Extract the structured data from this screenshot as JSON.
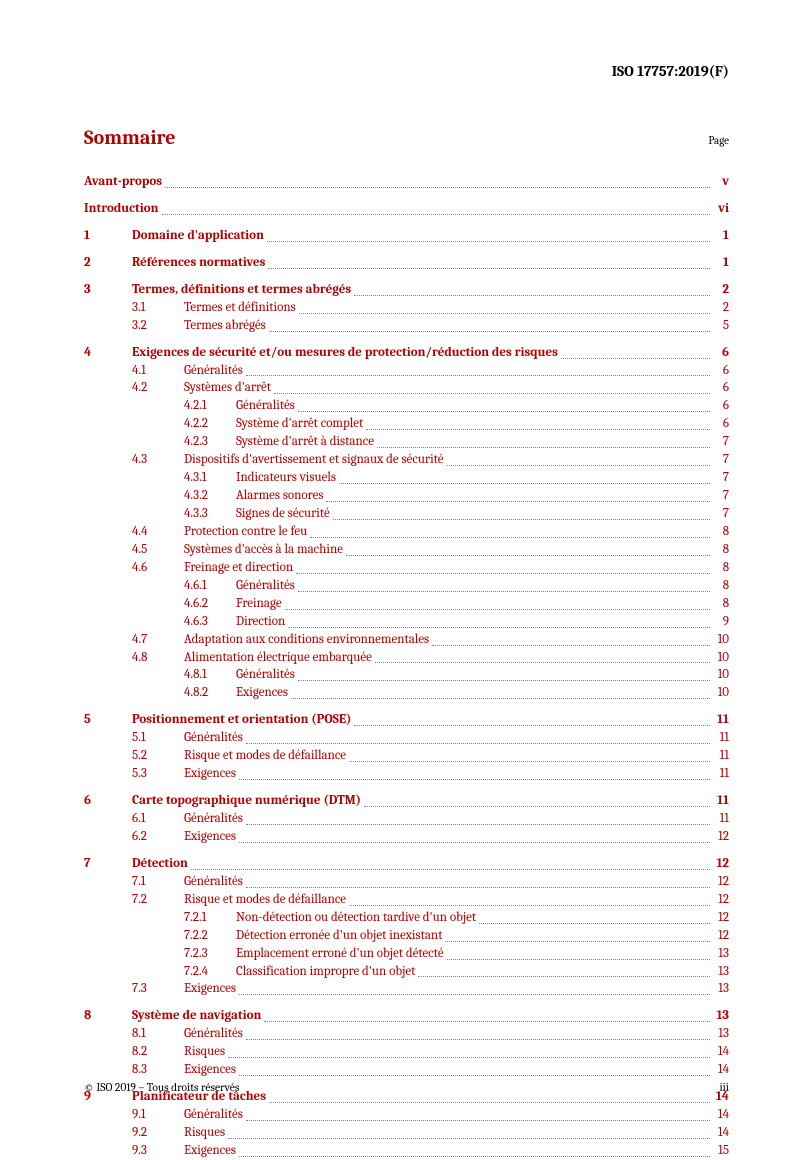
{
  "doc_id": "ISO 17757:2019(F)",
  "heading": "Sommaire",
  "page_label": "Page",
  "footer_left": "© ISO 2019 – Tous droits réservés",
  "footer_right": "iii",
  "colors": {
    "accent": "#b30000"
  },
  "toc": [
    {
      "level": 0,
      "num": "",
      "title": "Avant-propos",
      "page": "v",
      "link": true,
      "bold": true,
      "gap": false
    },
    {
      "level": 0,
      "num": "",
      "title": "Introduction",
      "page": "vi",
      "link": true,
      "bold": true,
      "gap": true
    },
    {
      "level": 1,
      "num": "1",
      "title": "Domaine d'application",
      "page": "1",
      "link": true,
      "bold": true,
      "gap": true
    },
    {
      "level": 1,
      "num": "2",
      "title": "Références normatives",
      "page": "1",
      "link": true,
      "bold": true,
      "gap": true
    },
    {
      "level": 1,
      "num": "3",
      "title": "Termes, définitions et termes abrégés",
      "page": "2",
      "link": true,
      "bold": true,
      "gap": true
    },
    {
      "level": 2,
      "num": "3.1",
      "title": "Termes et définitions",
      "page": "2",
      "link": true,
      "bold": false,
      "gap": false
    },
    {
      "level": 2,
      "num": "3.2",
      "title": "Termes abrégés",
      "page": "5",
      "link": true,
      "bold": false,
      "gap": false
    },
    {
      "level": 1,
      "num": "4",
      "title": "Exigences de sécurité et/ou mesures de protection/réduction des risques",
      "page": "6",
      "link": true,
      "bold": true,
      "gap": true
    },
    {
      "level": 2,
      "num": "4.1",
      "title": "Généralités",
      "page": "6",
      "link": true,
      "bold": false,
      "gap": false
    },
    {
      "level": 2,
      "num": "4.2",
      "title": "Systèmes d'arrêt",
      "page": "6",
      "link": true,
      "bold": false,
      "gap": false
    },
    {
      "level": 3,
      "num": "4.2.1",
      "title": "Généralités",
      "page": "6",
      "link": true,
      "bold": false,
      "gap": false
    },
    {
      "level": 3,
      "num": "4.2.2",
      "title": "Système d'arrêt complet",
      "page": "6",
      "link": true,
      "bold": false,
      "gap": false
    },
    {
      "level": 3,
      "num": "4.2.3",
      "title": "Système d'arrêt à distance",
      "page": "7",
      "link": true,
      "bold": false,
      "gap": false
    },
    {
      "level": 2,
      "num": "4.3",
      "title": "Dispositifs d'avertissement et signaux de sécurité",
      "page": "7",
      "link": true,
      "bold": false,
      "gap": false
    },
    {
      "level": 3,
      "num": "4.3.1",
      "title": "Indicateurs visuels",
      "page": "7",
      "link": true,
      "bold": false,
      "gap": false
    },
    {
      "level": 3,
      "num": "4.3.2",
      "title": "Alarmes sonores",
      "page": "7",
      "link": true,
      "bold": false,
      "gap": false
    },
    {
      "level": 3,
      "num": "4.3.3",
      "title": "Signes de sécurité",
      "page": "7",
      "link": true,
      "bold": false,
      "gap": false
    },
    {
      "level": 2,
      "num": "4.4",
      "title": "Protection contre le feu",
      "page": "8",
      "link": true,
      "bold": false,
      "gap": false
    },
    {
      "level": 2,
      "num": "4.5",
      "title": "Systèmes d'accès à la machine",
      "page": "8",
      "link": true,
      "bold": false,
      "gap": false
    },
    {
      "level": 2,
      "num": "4.6",
      "title": "Freinage et direction",
      "page": "8",
      "link": true,
      "bold": false,
      "gap": false
    },
    {
      "level": 3,
      "num": "4.6.1",
      "title": "Généralités",
      "page": "8",
      "link": true,
      "bold": false,
      "gap": false
    },
    {
      "level": 3,
      "num": "4.6.2",
      "title": "Freinage",
      "page": "8",
      "link": true,
      "bold": false,
      "gap": false
    },
    {
      "level": 3,
      "num": "4.6.3",
      "title": "Direction",
      "page": "9",
      "link": true,
      "bold": false,
      "gap": false
    },
    {
      "level": 2,
      "num": "4.7",
      "title": "Adaptation aux conditions environnementales",
      "page": "10",
      "link": true,
      "bold": false,
      "gap": false
    },
    {
      "level": 2,
      "num": "4.8",
      "title": "Alimentation électrique embarquée",
      "page": "10",
      "link": true,
      "bold": false,
      "gap": false
    },
    {
      "level": 3,
      "num": "4.8.1",
      "title": "Généralités",
      "page": "10",
      "link": true,
      "bold": false,
      "gap": false
    },
    {
      "level": 3,
      "num": "4.8.2",
      "title": "Exigences",
      "page": "10",
      "link": true,
      "bold": false,
      "gap": false
    },
    {
      "level": 1,
      "num": "5",
      "title": "Positionnement et orientation (POSE)",
      "page": "11",
      "link": true,
      "bold": true,
      "gap": true
    },
    {
      "level": 2,
      "num": "5.1",
      "title": "Généralités",
      "page": "11",
      "link": true,
      "bold": false,
      "gap": false
    },
    {
      "level": 2,
      "num": "5.2",
      "title": "Risque et modes de défaillance",
      "page": "11",
      "link": true,
      "bold": false,
      "gap": false
    },
    {
      "level": 2,
      "num": "5.3",
      "title": "Exigences",
      "page": "11",
      "link": true,
      "bold": false,
      "gap": false
    },
    {
      "level": 1,
      "num": "6",
      "title": "Carte topographique numérique (DTM)",
      "page": "11",
      "link": true,
      "bold": true,
      "gap": true
    },
    {
      "level": 2,
      "num": "6.1",
      "title": "Généralités",
      "page": "11",
      "link": true,
      "bold": false,
      "gap": false
    },
    {
      "level": 2,
      "num": "6.2",
      "title": "Exigences",
      "page": "12",
      "link": true,
      "bold": false,
      "gap": false
    },
    {
      "level": 1,
      "num": "7",
      "title": "Détection",
      "page": "12",
      "link": true,
      "bold": true,
      "gap": true
    },
    {
      "level": 2,
      "num": "7.1",
      "title": "Généralités",
      "page": "12",
      "link": true,
      "bold": false,
      "gap": false
    },
    {
      "level": 2,
      "num": "7.2",
      "title": "Risque et modes de défaillance",
      "page": "12",
      "link": true,
      "bold": false,
      "gap": false
    },
    {
      "level": 3,
      "num": "7.2.1",
      "title": "Non-détection ou détection tardive d'un objet",
      "page": "12",
      "link": true,
      "bold": false,
      "gap": false
    },
    {
      "level": 3,
      "num": "7.2.2",
      "title": "Détection erronée d'un objet inexistant",
      "page": "12",
      "link": true,
      "bold": false,
      "gap": false
    },
    {
      "level": 3,
      "num": "7.2.3",
      "title": "Emplacement erroné d'un objet détecté",
      "page": "13",
      "link": true,
      "bold": false,
      "gap": false
    },
    {
      "level": 3,
      "num": "7.2.4",
      "title": "Classification impropre d'un objet",
      "page": "13",
      "link": true,
      "bold": false,
      "gap": false
    },
    {
      "level": 2,
      "num": "7.3",
      "title": "Exigences",
      "page": "13",
      "link": true,
      "bold": false,
      "gap": false
    },
    {
      "level": 1,
      "num": "8",
      "title": "Système de navigation",
      "page": "13",
      "link": true,
      "bold": true,
      "gap": true
    },
    {
      "level": 2,
      "num": "8.1",
      "title": "Généralités",
      "page": "13",
      "link": true,
      "bold": false,
      "gap": false
    },
    {
      "level": 2,
      "num": "8.2",
      "title": "Risques",
      "page": "14",
      "link": true,
      "bold": false,
      "gap": false
    },
    {
      "level": 2,
      "num": "8.3",
      "title": "Exigences",
      "page": "14",
      "link": true,
      "bold": false,
      "gap": false
    },
    {
      "level": 1,
      "num": "9",
      "title": "Planificateur de tâches",
      "page": "14",
      "link": true,
      "bold": true,
      "gap": true
    },
    {
      "level": 2,
      "num": "9.1",
      "title": "Généralités",
      "page": "14",
      "link": true,
      "bold": false,
      "gap": false
    },
    {
      "level": 2,
      "num": "9.2",
      "title": "Risques",
      "page": "14",
      "link": true,
      "bold": false,
      "gap": false
    },
    {
      "level": 2,
      "num": "9.3",
      "title": "Exigences",
      "page": "15",
      "link": true,
      "bold": false,
      "gap": false
    }
  ]
}
